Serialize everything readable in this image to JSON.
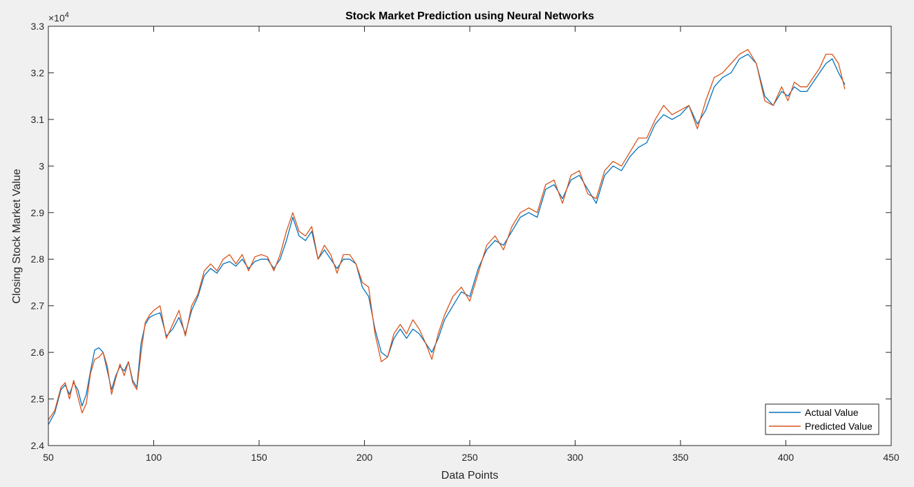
{
  "chart_data": {
    "type": "line",
    "title": "Stock Market Prediction using Neural Networks",
    "xlabel": "Data Points",
    "ylabel": "Closing Stock Market Value",
    "exponent_base": "×10",
    "exponent_power": "4",
    "xlim": [
      50,
      450
    ],
    "ylim": [
      2.4,
      3.3
    ],
    "xticks": [
      "50",
      "100",
      "150",
      "200",
      "250",
      "300",
      "350",
      "400",
      "450"
    ],
    "yticks": [
      "2.4",
      "2.5",
      "2.6",
      "2.7",
      "2.8",
      "2.9",
      "3",
      "3.1",
      "3.2",
      "3.3"
    ],
    "grid": false,
    "legend_position": "bottom-right",
    "series": [
      {
        "name": "Actual Value",
        "color": "#0072BD",
        "x": [
          50,
          53,
          56,
          58,
          60,
          62,
          64,
          66,
          68,
          70,
          72,
          74,
          76,
          78,
          80,
          82,
          84,
          86,
          88,
          90,
          92,
          94,
          96,
          98,
          100,
          103,
          106,
          109,
          112,
          115,
          118,
          121,
          124,
          127,
          130,
          133,
          136,
          139,
          142,
          145,
          148,
          151,
          154,
          157,
          160,
          163,
          166,
          169,
          172,
          175,
          178,
          181,
          184,
          187,
          190,
          193,
          196,
          199,
          202,
          205,
          208,
          211,
          214,
          217,
          220,
          223,
          226,
          229,
          232,
          235,
          238,
          242,
          246,
          250,
          254,
          258,
          262,
          266,
          270,
          274,
          278,
          282,
          286,
          290,
          294,
          298,
          302,
          306,
          310,
          314,
          318,
          322,
          326,
          330,
          334,
          338,
          342,
          346,
          350,
          354,
          358,
          362,
          366,
          370,
          374,
          378,
          382,
          386,
          390,
          394,
          398,
          401,
          404,
          407,
          410,
          413,
          416,
          419,
          422,
          425,
          428
        ],
        "y": [
          2.445,
          2.47,
          2.52,
          2.53,
          2.51,
          2.535,
          2.52,
          2.485,
          2.51,
          2.56,
          2.605,
          2.61,
          2.6,
          2.56,
          2.52,
          2.55,
          2.57,
          2.56,
          2.58,
          2.54,
          2.525,
          2.62,
          2.66,
          2.675,
          2.68,
          2.685,
          2.635,
          2.65,
          2.675,
          2.64,
          2.69,
          2.72,
          2.765,
          2.78,
          2.77,
          2.79,
          2.795,
          2.785,
          2.8,
          2.78,
          2.795,
          2.8,
          2.8,
          2.78,
          2.8,
          2.84,
          2.89,
          2.85,
          2.84,
          2.86,
          2.8,
          2.82,
          2.8,
          2.78,
          2.8,
          2.8,
          2.79,
          2.74,
          2.72,
          2.65,
          2.6,
          2.59,
          2.63,
          2.65,
          2.63,
          2.65,
          2.64,
          2.62,
          2.6,
          2.63,
          2.67,
          2.7,
          2.73,
          2.72,
          2.78,
          2.82,
          2.84,
          2.83,
          2.86,
          2.89,
          2.9,
          2.89,
          2.95,
          2.96,
          2.93,
          2.97,
          2.98,
          2.95,
          2.92,
          2.98,
          3.0,
          2.99,
          3.02,
          3.04,
          3.05,
          3.09,
          3.11,
          3.1,
          3.11,
          3.13,
          3.09,
          3.12,
          3.17,
          3.19,
          3.2,
          3.23,
          3.24,
          3.22,
          3.15,
          3.13,
          3.16,
          3.15,
          3.17,
          3.16,
          3.16,
          3.18,
          3.2,
          3.22,
          3.23,
          3.2,
          3.175
        ]
      },
      {
        "name": "Predicted Value",
        "color": "#D95319",
        "x": [
          50,
          53,
          56,
          58,
          60,
          62,
          64,
          66,
          68,
          70,
          72,
          74,
          76,
          78,
          80,
          82,
          84,
          86,
          88,
          90,
          92,
          94,
          96,
          98,
          100,
          103,
          106,
          109,
          112,
          115,
          118,
          121,
          124,
          127,
          130,
          133,
          136,
          139,
          142,
          145,
          148,
          151,
          154,
          157,
          160,
          163,
          166,
          169,
          172,
          175,
          178,
          181,
          184,
          187,
          190,
          193,
          196,
          199,
          202,
          205,
          208,
          211,
          214,
          217,
          220,
          223,
          226,
          229,
          232,
          235,
          238,
          242,
          246,
          250,
          254,
          258,
          262,
          266,
          270,
          274,
          278,
          282,
          286,
          290,
          294,
          298,
          302,
          306,
          310,
          314,
          318,
          322,
          326,
          330,
          334,
          338,
          342,
          346,
          350,
          354,
          358,
          362,
          366,
          370,
          374,
          378,
          382,
          386,
          390,
          394,
          398,
          401,
          404,
          407,
          410,
          413,
          416,
          419,
          422,
          425,
          428
        ],
        "y": [
          2.455,
          2.475,
          2.525,
          2.535,
          2.5,
          2.54,
          2.505,
          2.47,
          2.49,
          2.555,
          2.585,
          2.59,
          2.6,
          2.57,
          2.51,
          2.545,
          2.575,
          2.55,
          2.58,
          2.535,
          2.52,
          2.6,
          2.665,
          2.68,
          2.69,
          2.7,
          2.63,
          2.66,
          2.69,
          2.635,
          2.7,
          2.725,
          2.775,
          2.79,
          2.775,
          2.8,
          2.81,
          2.79,
          2.81,
          2.775,
          2.805,
          2.81,
          2.805,
          2.775,
          2.81,
          2.86,
          2.9,
          2.86,
          2.85,
          2.87,
          2.8,
          2.83,
          2.81,
          2.77,
          2.81,
          2.81,
          2.79,
          2.75,
          2.74,
          2.64,
          2.58,
          2.59,
          2.64,
          2.66,
          2.64,
          2.67,
          2.65,
          2.62,
          2.585,
          2.64,
          2.68,
          2.72,
          2.74,
          2.71,
          2.77,
          2.83,
          2.85,
          2.82,
          2.87,
          2.9,
          2.91,
          2.9,
          2.96,
          2.97,
          2.92,
          2.98,
          2.99,
          2.94,
          2.93,
          2.99,
          3.01,
          3.0,
          3.03,
          3.06,
          3.06,
          3.1,
          3.13,
          3.11,
          3.12,
          3.13,
          3.08,
          3.14,
          3.19,
          3.2,
          3.22,
          3.24,
          3.25,
          3.22,
          3.14,
          3.13,
          3.17,
          3.14,
          3.18,
          3.17,
          3.17,
          3.19,
          3.21,
          3.24,
          3.24,
          3.22,
          3.165
        ]
      }
    ]
  }
}
